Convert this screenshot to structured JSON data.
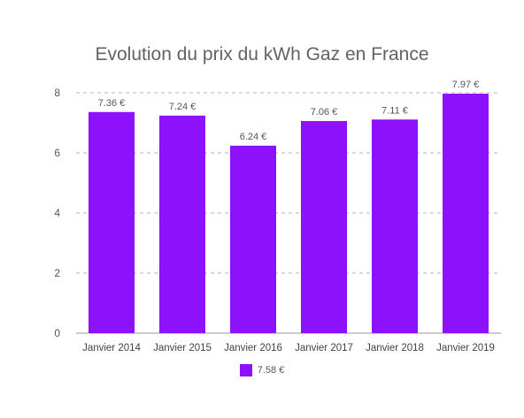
{
  "chart_data": {
    "type": "bar",
    "title": "Evolution du prix du kWh Gaz en France",
    "categories": [
      "Janvier 2014",
      "Janvier 2015",
      "Janvier 2016",
      "Janvier 2017",
      "Janvier 2018",
      "Janvier 2019"
    ],
    "series": [
      {
        "name": "7.58 €",
        "values": [
          7.36,
          7.24,
          6.24,
          7.06,
          7.11,
          7.97
        ],
        "labels": [
          "7.36 €",
          "7.24 €",
          "6.24 €",
          "7.06 €",
          "7.11 €",
          "7.97 €"
        ],
        "color": "#8d11fb"
      }
    ],
    "ylim": [
      0,
      8
    ],
    "yticks": [
      0,
      2,
      4,
      6,
      8
    ],
    "grid": "dashed-horizontal",
    "legend": "bottom-center"
  }
}
